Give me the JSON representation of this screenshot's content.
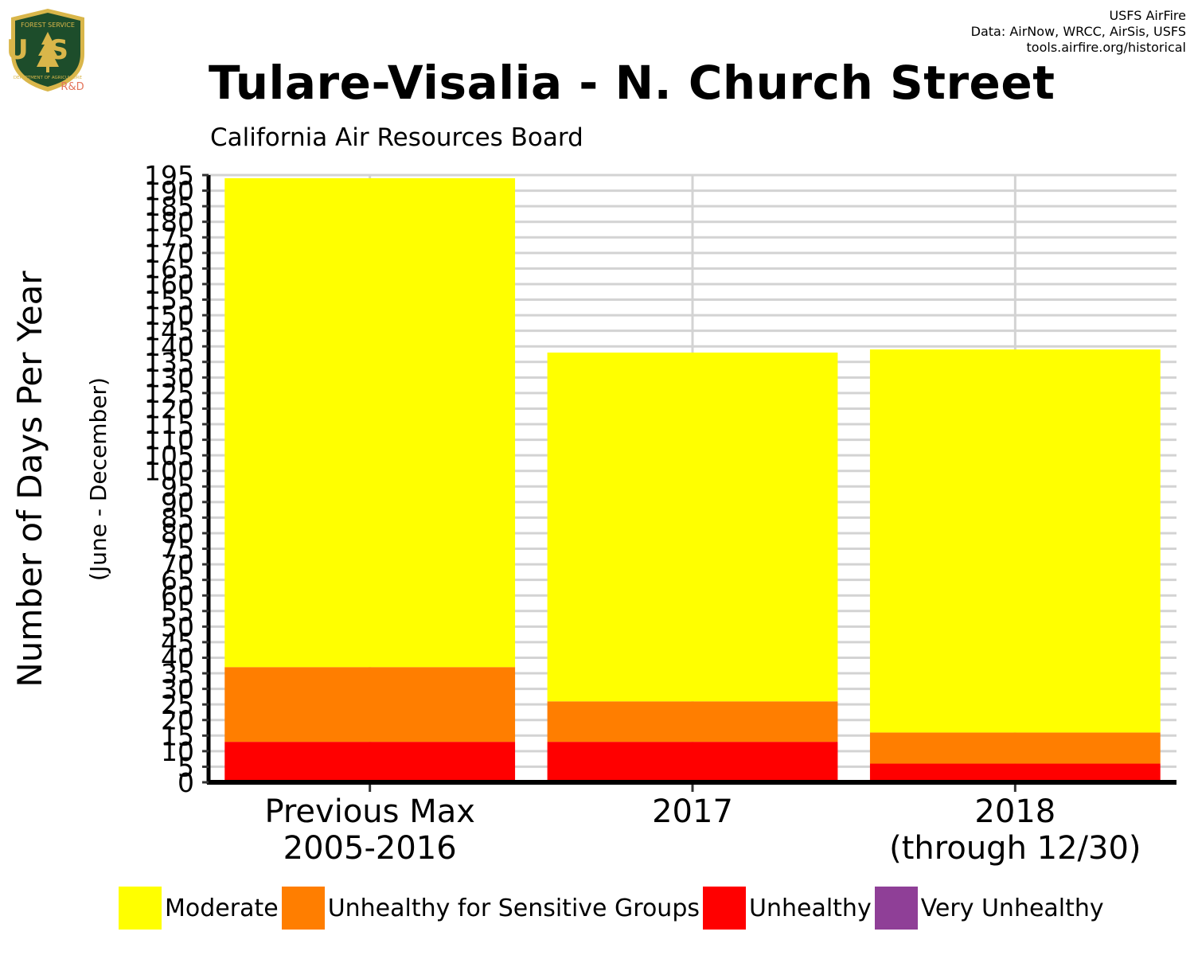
{
  "header": {
    "title": "Tulare-Visalia - N. Church Street",
    "subtitle": "California Air Resources Board",
    "credits": [
      "USFS AirFire",
      "Data: AirNow, WRCC, AirSis, USFS",
      "tools.airfire.org/historical"
    ]
  },
  "logo": {
    "top_text": "FOREST SERVICE",
    "letters": "US",
    "bottom_text": "DEPARTMENT OF AGRICULTURE",
    "badge": "R&D"
  },
  "colors": {
    "Moderate": "#ffff00",
    "Unhealthy for Sensitive Groups": "#ff7e00",
    "Unhealthy": "#ff0000",
    "Very Unhealthy": "#8f3f97",
    "grid": "#d3d3d3",
    "logo_green": "#1d4d2b",
    "logo_gold": "#d9b64a",
    "badge": "#e3745a"
  },
  "chart_data": {
    "type": "bar",
    "stacked": true,
    "categories": [
      [
        "Previous Max",
        "2005-2016"
      ],
      [
        "2017"
      ],
      [
        "2018",
        "(through 12/30)"
      ]
    ],
    "ylabel": "Number of Days Per Year",
    "ylabel_sub": "(June - December)",
    "ylim": [
      0,
      195
    ],
    "yticks": [
      0,
      5,
      10,
      15,
      20,
      25,
      30,
      35,
      40,
      45,
      50,
      55,
      60,
      65,
      70,
      75,
      80,
      85,
      90,
      95,
      100,
      105,
      110,
      115,
      120,
      125,
      130,
      135,
      140,
      145,
      150,
      155,
      160,
      165,
      170,
      175,
      180,
      185,
      190,
      195
    ],
    "grid": true,
    "legend_position": "bottom",
    "series": [
      {
        "name": "Unhealthy",
        "values": [
          13,
          13,
          6
        ]
      },
      {
        "name": "Unhealthy for Sensitive Groups",
        "values": [
          24,
          13,
          10
        ]
      },
      {
        "name": "Moderate",
        "values": [
          157,
          112,
          123
        ]
      },
      {
        "name": "Very Unhealthy",
        "values": [
          0,
          0,
          0
        ]
      }
    ],
    "legend": [
      "Moderate",
      "Unhealthy for Sensitive Groups",
      "Unhealthy",
      "Very Unhealthy"
    ]
  }
}
